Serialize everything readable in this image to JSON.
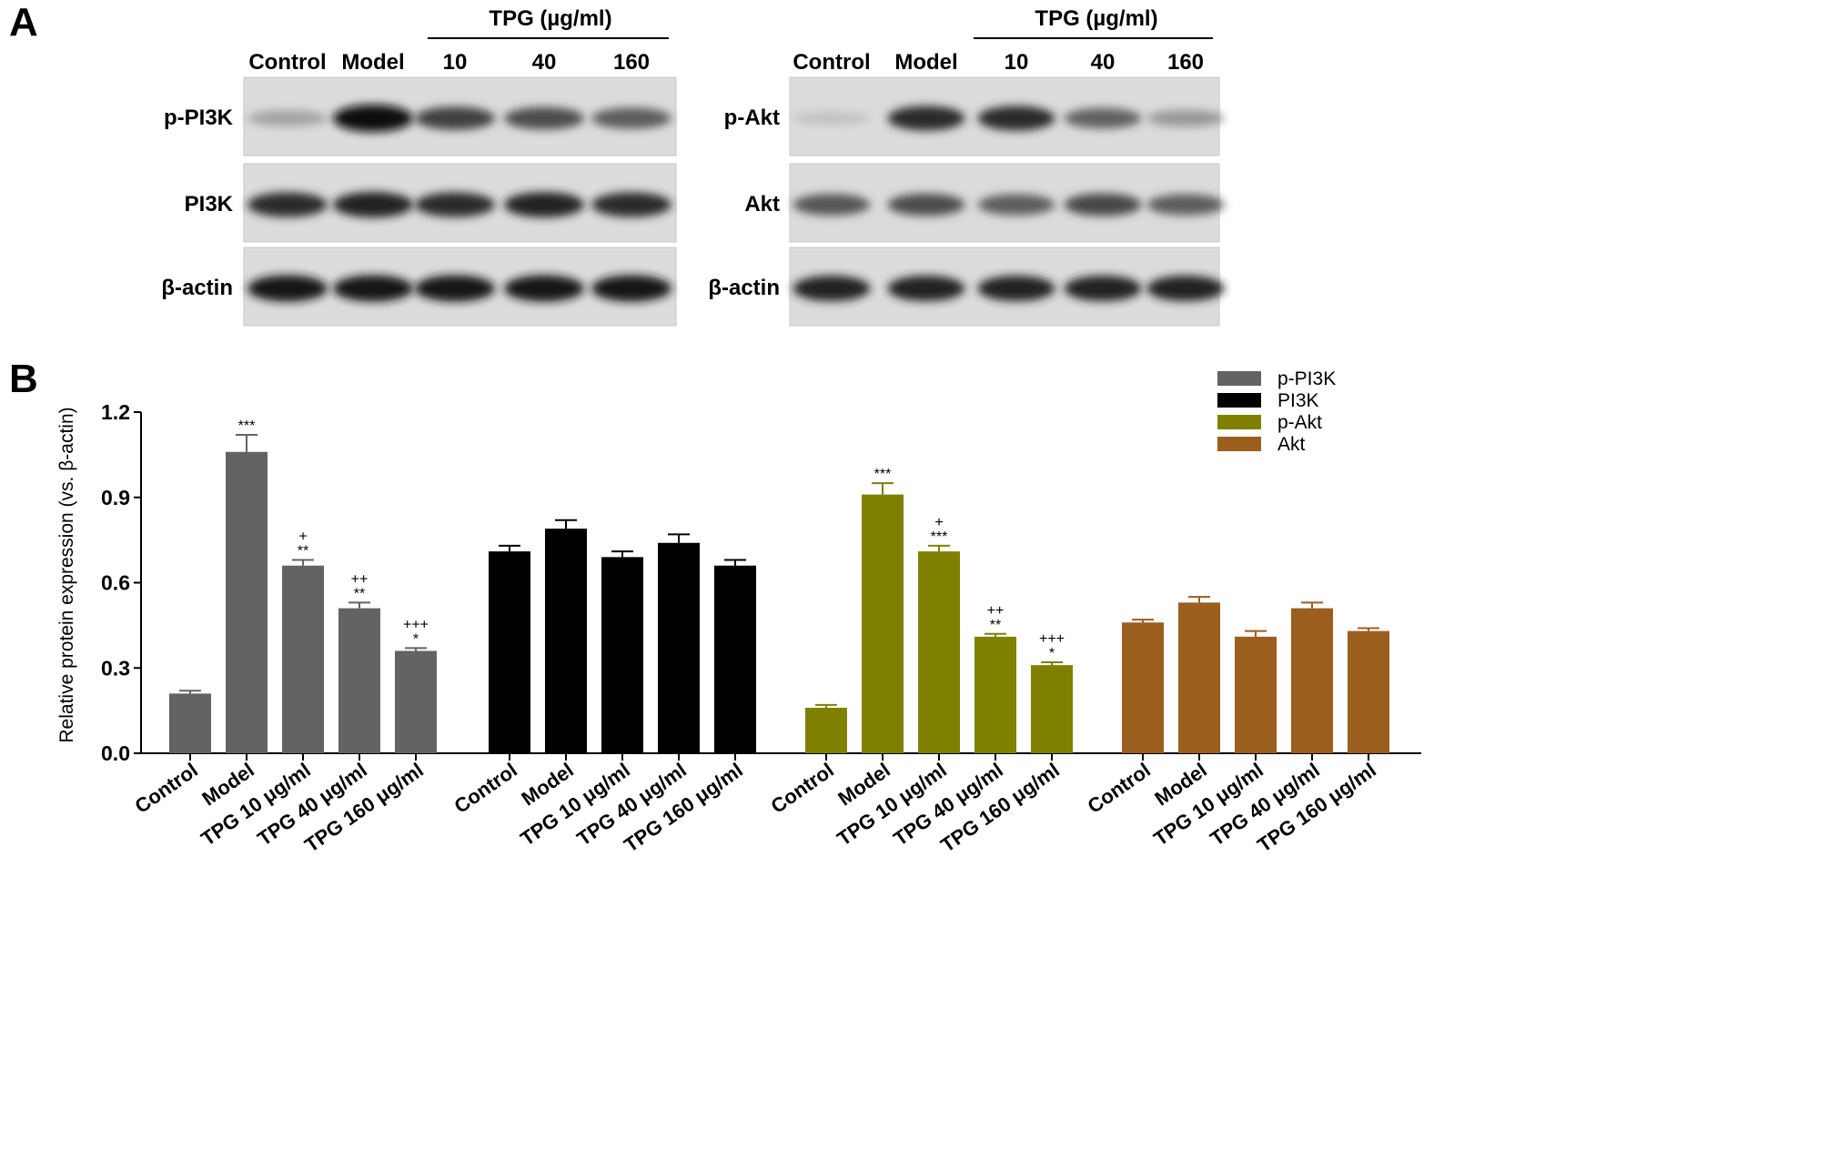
{
  "panels": {
    "a_letter": "A",
    "b_letter": "B"
  },
  "blot_left": {
    "tpg_header": "TPG (µg/ml)",
    "lanes": [
      "Control",
      "Model",
      "10",
      "40",
      "160"
    ],
    "rows": [
      {
        "label": "p-PI3K",
        "intensity": [
          0.3,
          1.0,
          0.75,
          0.7,
          0.62
        ]
      },
      {
        "label": "PI3K",
        "intensity": [
          0.85,
          0.9,
          0.85,
          0.88,
          0.85
        ]
      },
      {
        "label": "β-actin",
        "intensity": [
          0.95,
          0.95,
          0.95,
          0.95,
          0.95
        ]
      }
    ]
  },
  "blot_right": {
    "tpg_header": "TPG (µg/ml)",
    "lanes": [
      "Control",
      "Model",
      "10",
      "40",
      "160"
    ],
    "rows": [
      {
        "label": "p-Akt",
        "intensity": [
          0.15,
          0.85,
          0.85,
          0.6,
          0.35
        ]
      },
      {
        "label": "Akt",
        "intensity": [
          0.65,
          0.7,
          0.62,
          0.72,
          0.62
        ]
      },
      {
        "label": "β-actin",
        "intensity": [
          0.9,
          0.9,
          0.9,
          0.9,
          0.9
        ]
      }
    ]
  },
  "chart_data": {
    "type": "bar",
    "ylabel": "Relative protein expression (vs. β-actin)",
    "xlabel": "",
    "ylim": [
      0,
      1.2
    ],
    "yticks": [
      "0.0",
      "0.3",
      "0.6",
      "0.9",
      "1.2"
    ],
    "legend_position": "top-right",
    "categories": [
      "Control",
      "Model",
      "TPG 10 μg/ml",
      "TPG 40 μg/ml",
      "TPG 160 μg/ml"
    ],
    "series": [
      {
        "name": "p-PI3K",
        "color": "#636363",
        "values": [
          0.21,
          1.06,
          0.66,
          0.51,
          0.36
        ],
        "errors": [
          0.01,
          0.06,
          0.02,
          0.02,
          0.01
        ],
        "sig_star": [
          "",
          "***",
          "**",
          "**",
          "*"
        ],
        "sig_plus": [
          "",
          "",
          "+",
          "++",
          "+++"
        ]
      },
      {
        "name": "PI3K",
        "color": "#000000",
        "values": [
          0.71,
          0.79,
          0.69,
          0.74,
          0.66
        ],
        "errors": [
          0.02,
          0.03,
          0.02,
          0.03,
          0.02
        ],
        "sig_star": [
          "",
          "",
          "",
          "",
          ""
        ],
        "sig_plus": [
          "",
          "",
          "",
          "",
          ""
        ]
      },
      {
        "name": "p-Akt",
        "color": "#808000",
        "values": [
          0.16,
          0.91,
          0.71,
          0.41,
          0.31
        ],
        "errors": [
          0.01,
          0.04,
          0.02,
          0.01,
          0.01
        ],
        "sig_star": [
          "",
          "***",
          "***",
          "**",
          "*"
        ],
        "sig_plus": [
          "",
          "",
          "+",
          "++",
          "+++"
        ]
      },
      {
        "name": "Akt",
        "color": "#9b5e1f",
        "values": [
          0.46,
          0.53,
          0.41,
          0.51,
          0.43
        ],
        "errors": [
          0.01,
          0.02,
          0.02,
          0.02,
          0.01
        ],
        "sig_star": [
          "",
          "",
          "",
          "",
          ""
        ],
        "sig_plus": [
          "",
          "",
          "",
          "",
          ""
        ]
      }
    ]
  }
}
